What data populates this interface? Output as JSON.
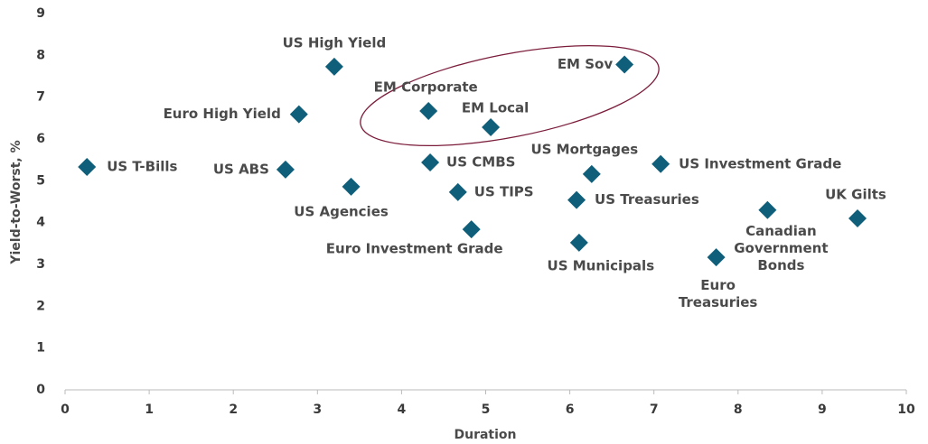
{
  "chart_data": {
    "type": "scatter",
    "xlabel": "Duration",
    "ylabel": "Yield-to-Worst, %",
    "color": "#0f5f7b",
    "points": [
      {
        "name": "US T-Bills",
        "x": 0.26,
        "y": 5.33
      },
      {
        "name": "US ABS",
        "x": 2.62,
        "y": 5.27
      },
      {
        "name": "US High Yield",
        "x": 3.2,
        "y": 7.73
      },
      {
        "name": "Euro High Yield",
        "x": 2.78,
        "y": 6.59
      },
      {
        "name": "US Agencies",
        "x": 3.4,
        "y": 4.86
      },
      {
        "name": "EM Corporate",
        "x": 4.32,
        "y": 6.67
      },
      {
        "name": "US CMBS",
        "x": 4.34,
        "y": 5.44
      },
      {
        "name": "US TIPS",
        "x": 4.67,
        "y": 4.73
      },
      {
        "name": "Euro Investment Grade",
        "x": 4.83,
        "y": 3.84
      },
      {
        "name": "EM Local",
        "x": 5.06,
        "y": 6.28
      },
      {
        "name": "EM Sov",
        "x": 6.65,
        "y": 7.78
      },
      {
        "name": "US Mortgages",
        "x": 6.26,
        "y": 5.16
      },
      {
        "name": "US Treasuries",
        "x": 6.08,
        "y": 4.54
      },
      {
        "name": "US Municipals",
        "x": 6.11,
        "y": 3.52
      },
      {
        "name": "US Investment Grade",
        "x": 7.08,
        "y": 5.4
      },
      {
        "name": "Euro Treasuries",
        "x": 7.74,
        "y": 3.17
      },
      {
        "name": "Canadian Government Bonds",
        "x": 8.35,
        "y": 4.3
      },
      {
        "name": "UK Gilts",
        "x": 9.42,
        "y": 4.1
      }
    ],
    "xlim": [
      0,
      10
    ],
    "xticks": [
      0,
      1,
      2,
      3,
      4,
      5,
      6,
      7,
      8,
      9,
      10
    ],
    "ylim": [
      0,
      9
    ],
    "yticks": [
      0,
      1,
      2,
      3,
      4,
      5,
      6,
      7,
      8,
      9
    ],
    "grid": false
  }
}
